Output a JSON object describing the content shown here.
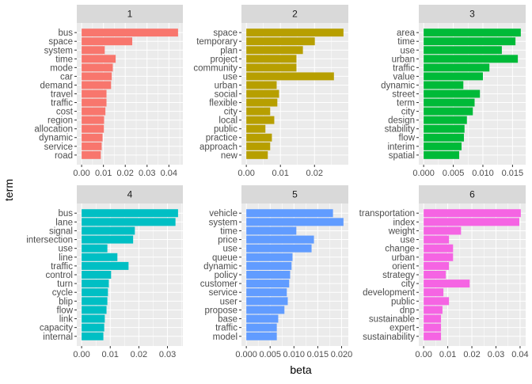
{
  "chart_data": {
    "type": "bar",
    "orientation": "horizontal",
    "xlabel": "beta",
    "ylabel": "term",
    "grid": true,
    "legend": "none",
    "facets": [
      {
        "title": "1",
        "color": "#F8766D",
        "terms": [
          "bus",
          "space",
          "system",
          "time",
          "mode",
          "car",
          "demand",
          "travel",
          "traffic",
          "cost",
          "region",
          "allocation",
          "dynamic",
          "service",
          "road"
        ],
        "values": [
          0.0442,
          0.0232,
          0.0106,
          0.0156,
          0.0143,
          0.0138,
          0.0135,
          0.0114,
          0.0114,
          0.0109,
          0.0103,
          0.0102,
          0.0096,
          0.0092,
          0.0088
        ],
        "ticks": [
          0,
          0.01,
          0.02,
          0.03,
          0.04
        ],
        "tick_labels": [
          "0.00",
          "0.01",
          "0.02",
          "0.03",
          "0.04"
        ]
      },
      {
        "title": "2",
        "color": "#B79F00",
        "terms": [
          "space",
          "temporary",
          "plan",
          "project",
          "community",
          "use",
          "urban",
          "social",
          "flexible",
          "city",
          "local",
          "public",
          "practice",
          "approach",
          "new"
        ],
        "values": [
          0.0285,
          0.0201,
          0.0166,
          0.0147,
          0.0147,
          0.0257,
          0.0089,
          0.0096,
          0.0091,
          0.007,
          0.0082,
          0.0056,
          0.0075,
          0.007,
          0.0063
        ],
        "ticks": [
          0,
          0.01,
          0.02
        ],
        "tick_labels": [
          "0.00",
          "0.01",
          "0.02"
        ]
      },
      {
        "title": "3",
        "color": "#00BA38",
        "terms": [
          "area",
          "time",
          "use",
          "urban",
          "traffic",
          "value",
          "dynamic",
          "street",
          "term",
          "city",
          "design",
          "stability",
          "flow",
          "interim",
          "spatial"
        ],
        "values": [
          0.0164,
          0.0155,
          0.0132,
          0.0159,
          0.0111,
          0.01,
          0.0067,
          0.0095,
          0.0086,
          0.0083,
          0.0073,
          0.0069,
          0.0068,
          0.0064,
          0.006
        ],
        "ticks": [
          0,
          0.005,
          0.01,
          0.015
        ],
        "tick_labels": [
          "0.000",
          "0.005",
          "0.010",
          "0.015"
        ]
      },
      {
        "title": "4",
        "color": "#00BFC4",
        "terms": [
          "bus",
          "lane",
          "signal",
          "intersection",
          "use",
          "line",
          "traffic",
          "control",
          "turn",
          "cycle",
          "blip",
          "flow",
          "link",
          "capacity",
          "internal"
        ],
        "values": [
          0.0337,
          0.0328,
          0.0186,
          0.018,
          0.009,
          0.0125,
          0.0164,
          0.0103,
          0.0095,
          0.0092,
          0.009,
          0.0087,
          0.0081,
          0.0079,
          0.0076
        ],
        "ticks": [
          0,
          0.01,
          0.02,
          0.03
        ],
        "tick_labels": [
          "0.00",
          "0.01",
          "0.02",
          "0.03"
        ]
      },
      {
        "title": "5",
        "color": "#619CFF",
        "terms": [
          "vehicle",
          "system",
          "time",
          "price",
          "use",
          "queue",
          "dynamic",
          "policy",
          "customer",
          "service",
          "user",
          "propose",
          "base",
          "traffic",
          "model"
        ],
        "values": [
          0.0182,
          0.0204,
          0.0105,
          0.0142,
          0.0137,
          0.0097,
          0.0095,
          0.0092,
          0.009,
          0.0085,
          0.0087,
          0.008,
          0.0067,
          0.0064,
          0.0064
        ],
        "ticks": [
          0,
          0.005,
          0.01,
          0.015,
          0.02
        ],
        "tick_labels": [
          "0.000",
          "0.005",
          "0.010",
          "0.015",
          "0.020"
        ]
      },
      {
        "title": "6",
        "color": "#F564E3",
        "terms": [
          "transportation",
          "index",
          "weight",
          "use",
          "change",
          "urban",
          "orient",
          "strategy",
          "city",
          "development",
          "public",
          "dnp",
          "sustainable",
          "expert",
          "sustainability"
        ],
        "values": [
          0.0403,
          0.0397,
          0.0155,
          0.0105,
          0.0122,
          0.0122,
          0.0105,
          0.0092,
          0.0191,
          0.0082,
          0.0105,
          0.0078,
          0.0072,
          0.0072,
          0.0072
        ],
        "ticks": [
          0,
          0.01,
          0.02,
          0.03,
          0.04
        ],
        "tick_labels": [
          "0.00",
          "0.01",
          "0.02",
          "0.03",
          "0.04"
        ]
      }
    ]
  }
}
